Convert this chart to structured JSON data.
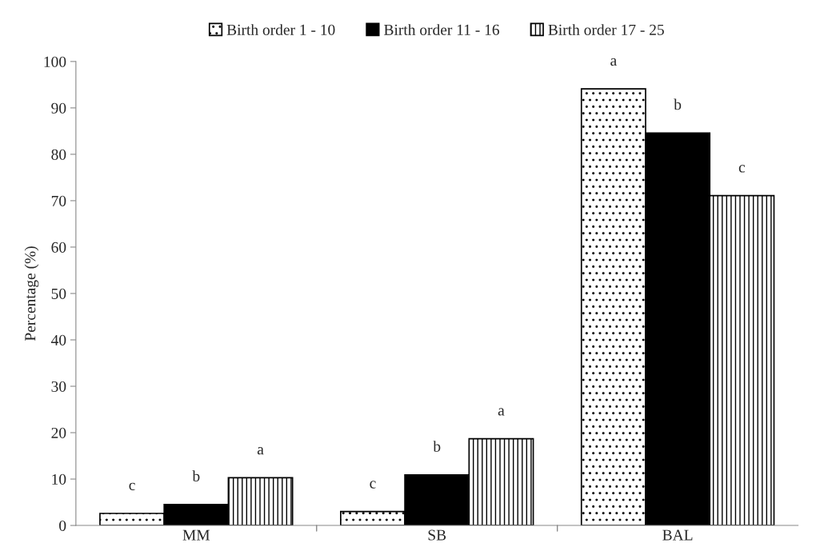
{
  "chart_data": {
    "type": "bar",
    "ylabel": "Percentage (%)",
    "categories": [
      "MM",
      "SB",
      "BAL"
    ],
    "series": [
      {
        "name": "Birth order 1 - 10",
        "color": "#000000",
        "values": [
          2.6,
          3.0,
          94.1
        ],
        "value_labels": [
          "c",
          "c",
          "a"
        ]
      },
      {
        "name": "Birth order 11 - 16",
        "color": "#000000",
        "values": [
          4.5,
          10.9,
          84.6
        ],
        "value_labels": [
          "b",
          "b",
          "b"
        ]
      },
      {
        "name": "Birth order 17 - 25",
        "color": "#000000",
        "values": [
          10.3,
          18.7,
          71.1
        ],
        "value_labels": [
          "a",
          "a",
          "c"
        ]
      }
    ],
    "ylim": [
      0,
      100
    ],
    "yticks": [
      0,
      10,
      20,
      30,
      40,
      50,
      60,
      70,
      80,
      90,
      100
    ],
    "grid": false,
    "legend": "top"
  }
}
